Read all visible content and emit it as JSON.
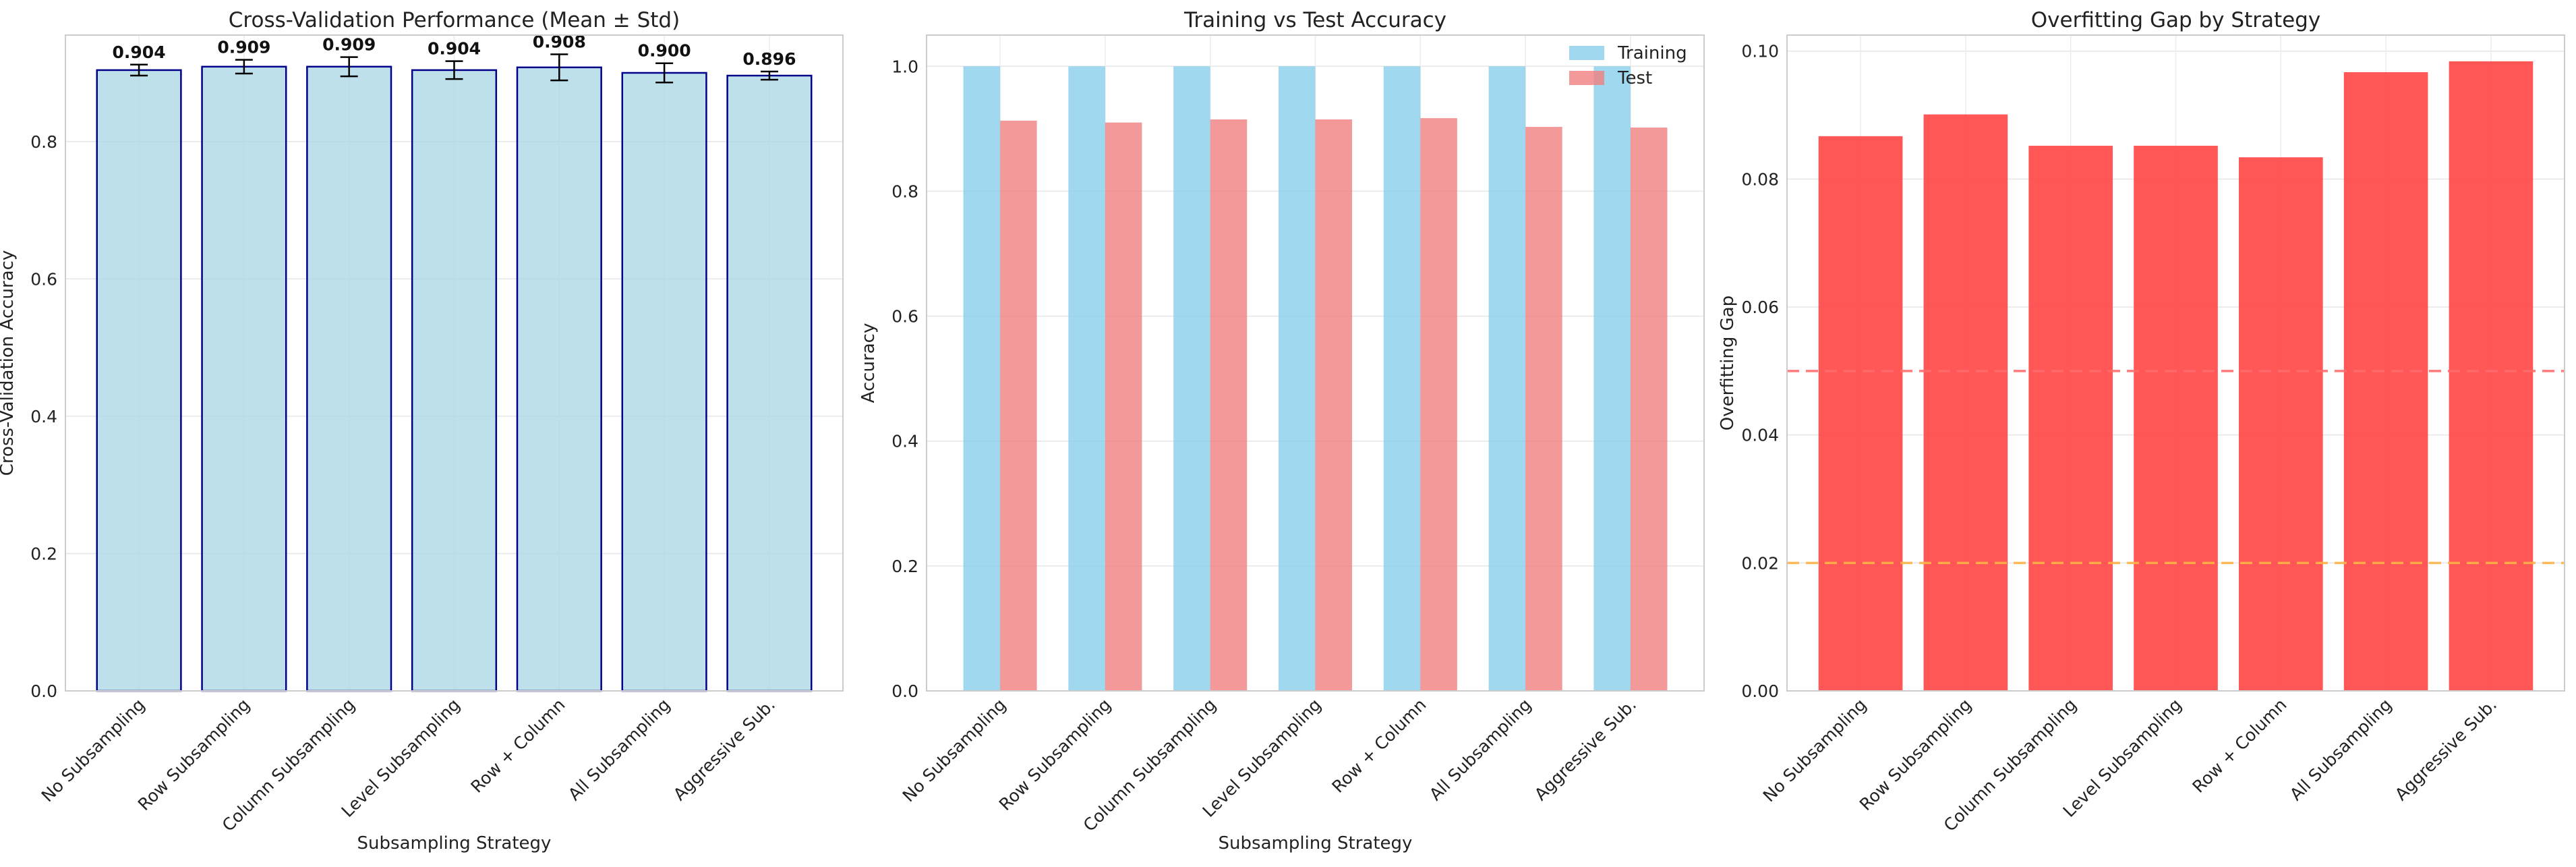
{
  "chart_data": [
    {
      "type": "bar",
      "title": "Cross-Validation Performance (Mean ± Std)",
      "xlabel": "Subsampling Strategy",
      "ylabel": "Cross-Validation Accuracy",
      "categories": [
        "No Subsampling",
        "Row Subsampling",
        "Column Subsampling",
        "Level Subsampling",
        "Row + Column",
        "All Subsampling",
        "Aggressive Sub."
      ],
      "values": [
        0.904,
        0.909,
        0.909,
        0.904,
        0.908,
        0.9,
        0.896
      ],
      "errors": [
        0.008,
        0.01,
        0.014,
        0.013,
        0.019,
        0.014,
        0.006
      ],
      "data_labels": [
        "0.904",
        "0.909",
        "0.909",
        "0.904",
        "0.908",
        "0.900",
        "0.896"
      ],
      "ylim": [
        0,
        0.955
      ],
      "yticks": [
        0.0,
        0.2,
        0.4,
        0.6,
        0.8
      ],
      "ytick_labels": [
        "0.0",
        "0.2",
        "0.4",
        "0.6",
        "0.8"
      ],
      "grid": true,
      "bar_color": "#add8e6",
      "edge_color": "#00008b"
    },
    {
      "type": "bar",
      "title": "Training vs Test Accuracy",
      "xlabel": "Subsampling Strategy",
      "ylabel": "Accuracy",
      "categories": [
        "No Subsampling",
        "Row Subsampling",
        "Column Subsampling",
        "Level Subsampling",
        "Row + Column",
        "All Subsampling",
        "Aggressive Sub."
      ],
      "series": [
        {
          "name": "Training",
          "values": [
            1.0,
            1.0,
            1.0,
            1.0,
            1.0,
            1.0,
            1.0
          ],
          "color": "#87ceeb"
        },
        {
          "name": "Test",
          "values": [
            0.913,
            0.91,
            0.915,
            0.915,
            0.917,
            0.903,
            0.902
          ],
          "color": "#f08080"
        }
      ],
      "ylim": [
        0,
        1.05
      ],
      "yticks": [
        0.0,
        0.2,
        0.4,
        0.6,
        0.8,
        1.0
      ],
      "ytick_labels": [
        "0.0",
        "0.2",
        "0.4",
        "0.6",
        "0.8",
        "1.0"
      ],
      "legend": "top-right",
      "grid": true
    },
    {
      "type": "bar",
      "title": "Overfitting Gap by Strategy",
      "xlabel": "",
      "ylabel": "Overfitting Gap",
      "categories": [
        "No Subsampling",
        "Row Subsampling",
        "Column Subsampling",
        "Level Subsampling",
        "Row + Column",
        "All Subsampling",
        "Aggressive Sub."
      ],
      "values": [
        0.0867,
        0.0901,
        0.0852,
        0.0852,
        0.0834,
        0.0967,
        0.0984
      ],
      "reference_lines": [
        {
          "y": 0.05,
          "color": "#ff6b6b",
          "style": "dashed"
        },
        {
          "y": 0.02,
          "color": "#ffb347",
          "style": "dashed"
        }
      ],
      "ylim": [
        0,
        0.1025
      ],
      "yticks": [
        0.0,
        0.02,
        0.04,
        0.06,
        0.08,
        0.1
      ],
      "ytick_labels": [
        "0.00",
        "0.02",
        "0.04",
        "0.06",
        "0.08",
        "0.10"
      ],
      "grid": true,
      "bar_color": "#ff4d4d"
    }
  ]
}
